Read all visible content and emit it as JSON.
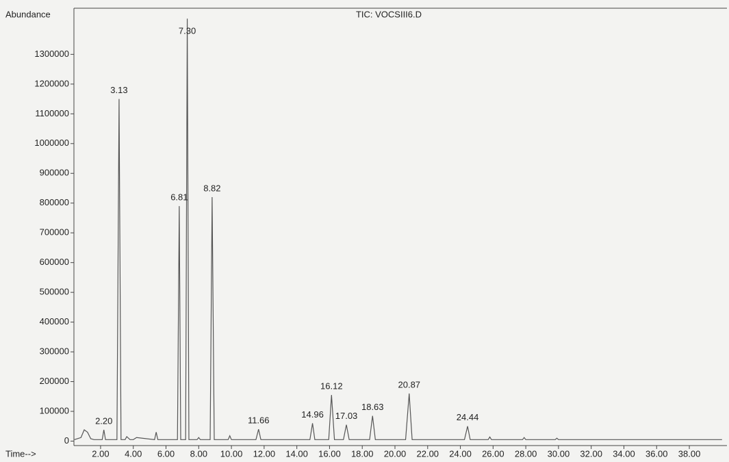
{
  "chart_data": {
    "type": "line",
    "title": "TIC: VOCSIII6.D",
    "ylabel": "Abundance",
    "xlabel": "Time-->",
    "color": "#555555",
    "x": [
      0.4,
      0.8,
      1.0,
      1.2,
      1.4,
      1.6,
      2.1,
      2.2,
      2.3,
      3.0,
      3.13,
      3.25,
      3.5,
      3.6,
      3.8,
      4.0,
      4.2,
      5.3,
      5.4,
      5.5,
      6.7,
      6.81,
      6.9,
      7.2,
      7.3,
      7.4,
      7.9,
      8.0,
      8.1,
      8.7,
      8.82,
      8.95,
      9.8,
      9.9,
      10.0,
      11.5,
      11.66,
      11.8,
      14.8,
      14.96,
      15.1,
      15.95,
      16.12,
      16.3,
      16.85,
      17.03,
      17.2,
      18.45,
      18.63,
      18.8,
      20.65,
      20.87,
      21.05,
      24.25,
      24.44,
      24.6,
      25.7,
      25.8,
      25.9,
      27.8,
      27.9,
      28.0,
      29.8,
      29.9,
      30.0,
      40.0
    ],
    "values": [
      5000,
      12000,
      38000,
      30000,
      8000,
      5000,
      5000,
      38000,
      5000,
      5000,
      1150000,
      5000,
      5000,
      15000,
      5000,
      5000,
      12000,
      5000,
      30000,
      5000,
      5000,
      790000,
      5000,
      5000,
      1420000,
      5000,
      5000,
      12000,
      5000,
      5000,
      820000,
      5000,
      5000,
      18000,
      5000,
      5000,
      40000,
      5000,
      5000,
      60000,
      5000,
      5000,
      155000,
      5000,
      5000,
      55000,
      5000,
      5000,
      85000,
      5000,
      5000,
      160000,
      5000,
      5000,
      50000,
      5000,
      5000,
      14000,
      5000,
      5000,
      12000,
      5000,
      5000,
      10000,
      5000,
      5000
    ],
    "annotations": [
      {
        "x": 2.2,
        "y": 38000,
        "label": "2.20"
      },
      {
        "x": 3.13,
        "y": 1150000,
        "label": "3.13"
      },
      {
        "x": 6.81,
        "y": 790000,
        "label": "6.81"
      },
      {
        "x": 7.3,
        "y": 1420000,
        "label": "7.30"
      },
      {
        "x": 8.82,
        "y": 820000,
        "label": "8.82"
      },
      {
        "x": 11.66,
        "y": 40000,
        "label": "11.66"
      },
      {
        "x": 14.96,
        "y": 60000,
        "label": "14.96"
      },
      {
        "x": 16.12,
        "y": 155000,
        "label": "16.12"
      },
      {
        "x": 17.03,
        "y": 55000,
        "label": "17.03"
      },
      {
        "x": 18.63,
        "y": 85000,
        "label": "18.63"
      },
      {
        "x": 20.87,
        "y": 160000,
        "label": "20.87"
      },
      {
        "x": 24.44,
        "y": 50000,
        "label": "24.44"
      }
    ],
    "xlim": [
      0.37,
      40.3
    ],
    "ylim": [
      -15000,
      1455000
    ],
    "xticks": [
      {
        "value": 2,
        "label": "2.00"
      },
      {
        "value": 4,
        "label": "4.00"
      },
      {
        "value": 6,
        "label": "6.00"
      },
      {
        "value": 8,
        "label": "8.00"
      },
      {
        "value": 10,
        "label": "10.00"
      },
      {
        "value": 12,
        "label": "12.00"
      },
      {
        "value": 14,
        "label": "14.00"
      },
      {
        "value": 16,
        "label": "16.00"
      },
      {
        "value": 18,
        "label": "18.00"
      },
      {
        "value": 20,
        "label": "20.00"
      },
      {
        "value": 22,
        "label": "22.00"
      },
      {
        "value": 24,
        "label": "24.00"
      },
      {
        "value": 26,
        "label": "26.00"
      },
      {
        "value": 28,
        "label": "28.00"
      },
      {
        "value": 30,
        "label": "30.00"
      },
      {
        "value": 32,
        "label": "32.00"
      },
      {
        "value": 34,
        "label": "34.00"
      },
      {
        "value": 36,
        "label": "36.00"
      },
      {
        "value": 38,
        "label": "38.00"
      }
    ],
    "yticks": [
      0,
      100000,
      200000,
      300000,
      400000,
      500000,
      600000,
      700000,
      800000,
      900000,
      1000000,
      1100000,
      1200000,
      1300000
    ]
  }
}
